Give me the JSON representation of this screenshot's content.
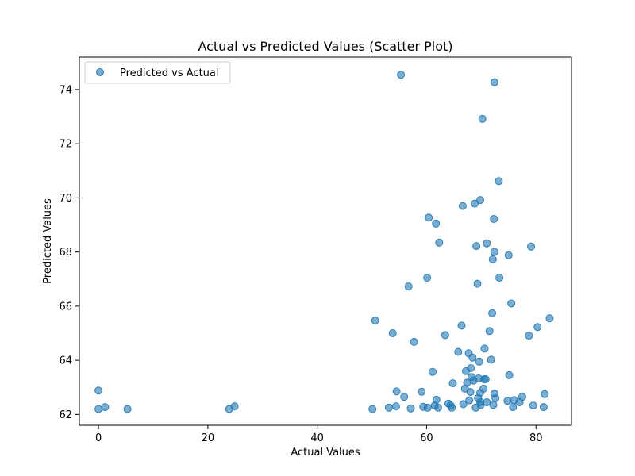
{
  "chart_data": {
    "type": "scatter",
    "title": "Actual vs Predicted Values (Scatter Plot)",
    "xlabel": "Actual Values",
    "ylabel": "Predicted Values",
    "xlim": [
      -3.5,
      86.5
    ],
    "ylim": [
      61.6,
      75.2
    ],
    "xticks": [
      0,
      20,
      40,
      60,
      80
    ],
    "yticks": [
      62,
      64,
      66,
      68,
      70,
      72,
      74
    ],
    "grid": false,
    "legend_position": "top-left",
    "colors": {
      "marker": "#1f77b4",
      "axis": "#000000",
      "legend_border": "#cccccc"
    },
    "series": [
      {
        "name": "Predicted vs Actual",
        "points": [
          [
            0,
            62.88
          ],
          [
            0,
            62.2
          ],
          [
            1.2,
            62.27
          ],
          [
            5.3,
            62.2
          ],
          [
            23.9,
            62.2
          ],
          [
            24.9,
            62.3
          ],
          [
            50.1,
            62.2
          ],
          [
            50.6,
            65.47
          ],
          [
            53.1,
            62.25
          ],
          [
            53.8,
            65.0
          ],
          [
            54.4,
            62.3
          ],
          [
            54.5,
            62.85
          ],
          [
            55.3,
            74.55
          ],
          [
            55.9,
            62.65
          ],
          [
            56.7,
            66.73
          ],
          [
            57.1,
            62.22
          ],
          [
            57.7,
            64.68
          ],
          [
            59.1,
            62.84
          ],
          [
            59.4,
            62.28
          ],
          [
            60.1,
            67.05
          ],
          [
            60.2,
            62.25
          ],
          [
            60.4,
            69.27
          ],
          [
            61.1,
            63.57
          ],
          [
            61.5,
            62.33
          ],
          [
            61.7,
            69.05
          ],
          [
            61.8,
            62.54
          ],
          [
            62.1,
            62.25
          ],
          [
            62.3,
            68.35
          ],
          [
            63.4,
            64.93
          ],
          [
            64.0,
            62.4
          ],
          [
            64.4,
            62.33
          ],
          [
            64.6,
            62.25
          ],
          [
            64.8,
            63.15
          ],
          [
            65.8,
            64.31
          ],
          [
            66.4,
            65.28
          ],
          [
            66.6,
            69.7
          ],
          [
            66.7,
            62.38
          ],
          [
            67.0,
            62.95
          ],
          [
            67.2,
            63.6
          ],
          [
            67.4,
            63.17
          ],
          [
            67.7,
            64.26
          ],
          [
            67.8,
            62.52
          ],
          [
            68.0,
            62.83
          ],
          [
            68.1,
            63.71
          ],
          [
            68.2,
            63.38
          ],
          [
            68.4,
            64.1
          ],
          [
            68.6,
            63.25
          ],
          [
            68.8,
            69.79
          ],
          [
            69.0,
            62.25
          ],
          [
            69.1,
            68.22
          ],
          [
            69.3,
            66.83
          ],
          [
            69.4,
            62.6
          ],
          [
            69.5,
            63.33
          ],
          [
            69.6,
            63.95
          ],
          [
            69.8,
            62.46
          ],
          [
            69.8,
            62.8
          ],
          [
            69.8,
            69.92
          ],
          [
            69.9,
            62.35
          ],
          [
            70.2,
            72.92
          ],
          [
            70.4,
            62.95
          ],
          [
            70.5,
            63.3
          ],
          [
            70.6,
            64.43
          ],
          [
            70.8,
            63.3
          ],
          [
            71.0,
            68.32
          ],
          [
            71.0,
            62.45
          ],
          [
            71.5,
            65.08
          ],
          [
            71.8,
            64.02
          ],
          [
            72.0,
            65.74
          ],
          [
            72.1,
            67.73
          ],
          [
            72.2,
            62.35
          ],
          [
            72.3,
            69.22
          ],
          [
            72.4,
            68.0
          ],
          [
            72.4,
            62.77
          ],
          [
            72.4,
            74.27
          ],
          [
            72.6,
            62.6
          ],
          [
            73.2,
            70.62
          ],
          [
            73.3,
            67.05
          ],
          [
            74.8,
            62.5
          ],
          [
            75.0,
            67.88
          ],
          [
            75.1,
            63.45
          ],
          [
            75.5,
            66.1
          ],
          [
            75.8,
            62.27
          ],
          [
            76.0,
            62.53
          ],
          [
            77.0,
            62.45
          ],
          [
            77.5,
            62.65
          ],
          [
            78.7,
            64.91
          ],
          [
            79.1,
            68.2
          ],
          [
            79.5,
            62.33
          ],
          [
            80.3,
            65.23
          ],
          [
            81.4,
            62.27
          ],
          [
            81.6,
            62.75
          ],
          [
            82.5,
            65.55
          ]
        ]
      }
    ]
  }
}
